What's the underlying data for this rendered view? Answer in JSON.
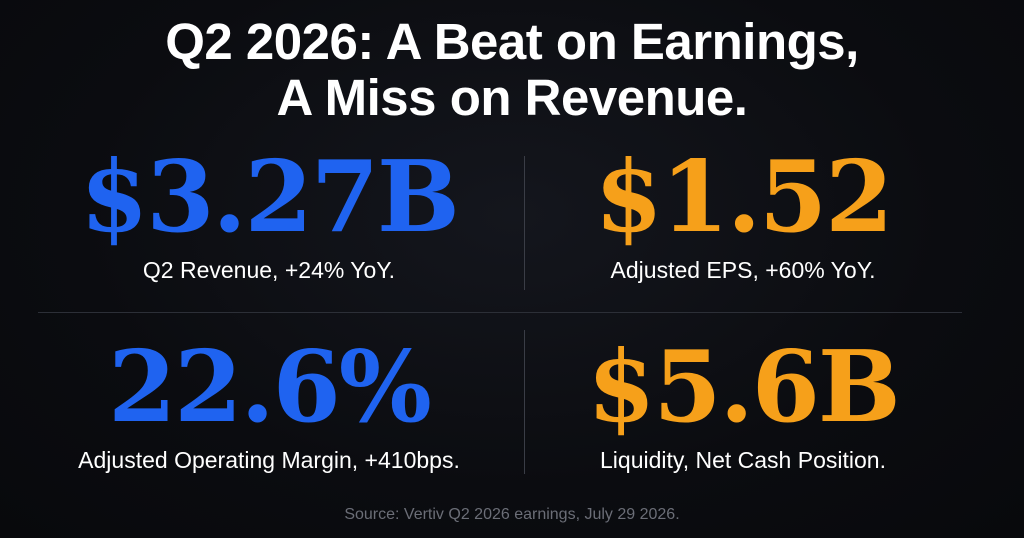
{
  "headline": {
    "line1": "Q2 2026: A Beat on Earnings,",
    "line2": "A Miss on Revenue."
  },
  "metrics": [
    {
      "value": "$3.27B",
      "label": "Q2 Revenue, +24% YoY.",
      "color": "#1f63f0"
    },
    {
      "value": "$1.52",
      "label": "Adjusted EPS, +60% YoY.",
      "color": "#f6a01a"
    },
    {
      "value": "22.6%",
      "label": "Adjusted Operating Margin, +410bps.",
      "color": "#1f63f0"
    },
    {
      "value": "$5.6B",
      "label": "Liquidity, Net Cash Position.",
      "color": "#f6a01a"
    }
  ],
  "source": "Source: Vertiv Q2 2026 earnings, July 29 2026."
}
